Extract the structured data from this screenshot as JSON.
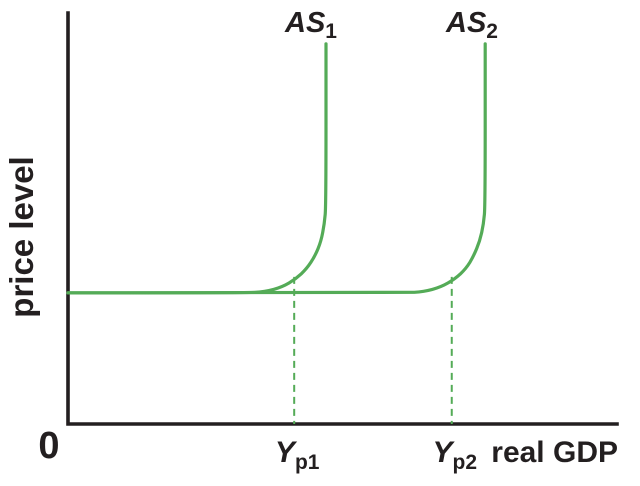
{
  "figure": {
    "background": "#ffffff"
  },
  "chart_data": {
    "type": "line",
    "title": "",
    "xlabel": "real GDP",
    "ylabel": "price level",
    "origin_label": "0",
    "x_axis_numeric": false,
    "y_axis_numeric": false,
    "grid": false,
    "legend": "none",
    "x_range": [
      0,
      1
    ],
    "y_range": [
      0,
      1
    ],
    "colors": {
      "curve": "#54ab57",
      "axis": "#231f20",
      "text": "#231f20",
      "background": "#ffffff"
    },
    "flat_price_level_y": 0.319,
    "series": [
      {
        "name": "AS1",
        "label_main": "AS",
        "label_sub": "1",
        "color": "#54ab57",
        "shape": "horizontal-then-vertical (short-run to long-run aggregate supply)",
        "points": [
          [
            0.0,
            0.319
          ],
          [
            0.322,
            0.319
          ],
          [
            0.359,
            0.322
          ],
          [
            0.39,
            0.333
          ],
          [
            0.415,
            0.353
          ],
          [
            0.435,
            0.378
          ],
          [
            0.45,
            0.409
          ],
          [
            0.461,
            0.445
          ],
          [
            0.467,
            0.487
          ],
          [
            0.47,
            0.533
          ],
          [
            0.47,
            0.925
          ]
        ]
      },
      {
        "name": "AS2",
        "label_main": "AS",
        "label_sub": "2",
        "color": "#54ab57",
        "shape": "horizontal-then-vertical (short-run to long-run aggregate supply)",
        "points": [
          [
            0.0,
            0.319
          ],
          [
            0.614,
            0.319
          ],
          [
            0.648,
            0.322
          ],
          [
            0.679,
            0.333
          ],
          [
            0.705,
            0.353
          ],
          [
            0.725,
            0.378
          ],
          [
            0.739,
            0.409
          ],
          [
            0.75,
            0.445
          ],
          [
            0.757,
            0.487
          ],
          [
            0.76,
            0.533
          ],
          [
            0.76,
            0.925
          ]
        ]
      }
    ],
    "guides": [
      {
        "name": "Yp1",
        "label_main": "Y",
        "label_sub": "p1",
        "x": 0.412,
        "y_top": 0.358,
        "style": "dashed"
      },
      {
        "name": "Yp2",
        "label_main": "Y",
        "label_sub": "p2",
        "x": 0.699,
        "y_top": 0.358,
        "style": "dashed"
      }
    ]
  }
}
